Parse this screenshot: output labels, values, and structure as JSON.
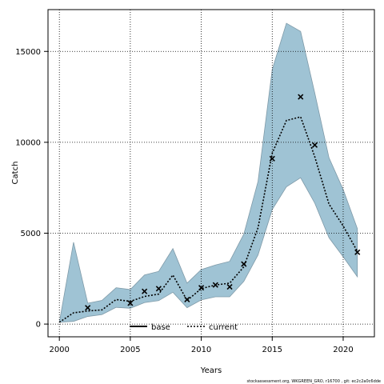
{
  "chart_data": {
    "type": "line",
    "xlabel": "Years",
    "ylabel": "Catch",
    "xlim": [
      1999.2,
      2022.2
    ],
    "ylim": [
      -700,
      17300
    ],
    "x_ticks": [
      2000,
      2005,
      2010,
      2015,
      2020
    ],
    "y_ticks": [
      0,
      5000,
      10000,
      15000
    ],
    "grid": true,
    "legend_position": "bottom-center",
    "colors": {
      "band": "#9fc3d4",
      "band_edge": "#7f9aa8",
      "line": "#000000",
      "marker": "#000000"
    },
    "years": [
      2000,
      2001,
      2002,
      2003,
      2004,
      2005,
      2006,
      2007,
      2008,
      2009,
      2010,
      2011,
      2012,
      2013,
      2014,
      2015,
      2016,
      2017,
      2018,
      2019,
      2020,
      2021
    ],
    "series": [
      {
        "name": "current",
        "style": "dotted",
        "values": [
          100,
          620,
          720,
          780,
          1350,
          1250,
          1520,
          1650,
          2700,
          1300,
          1950,
          2150,
          2250,
          3150,
          5300,
          9400,
          11200,
          11400,
          9200,
          6600,
          5400,
          4000
        ]
      }
    ],
    "band": {
      "upper": [
        100,
        4500,
        1150,
        1300,
        2000,
        1900,
        2700,
        2900,
        4150,
        2250,
        3000,
        3250,
        3450,
        4950,
        7850,
        14000,
        16550,
        16100,
        12700,
        9150,
        7400,
        5250
      ],
      "lower": [
        100,
        150,
        420,
        520,
        920,
        870,
        1180,
        1290,
        1750,
        900,
        1330,
        1500,
        1500,
        2350,
        3800,
        6300,
        7550,
        8050,
        6650,
        4750,
        3700,
        2600
      ]
    },
    "observed": {
      "years": [
        2002,
        2005,
        2006,
        2007,
        2009,
        2010,
        2011,
        2012,
        2013,
        2015,
        2017,
        2018,
        2021
      ],
      "values": [
        900,
        1150,
        1800,
        1950,
        1350,
        2000,
        2150,
        2050,
        3300,
        9100,
        12500,
        9850,
        3950
      ]
    },
    "legend": [
      {
        "label": "base",
        "style": "solid"
      },
      {
        "label": "current",
        "style": "dotted"
      }
    ],
    "footnote": "stockassessment.org, WKGREEN_GRO, r16700 , git: ec2c2a0c6dde"
  }
}
